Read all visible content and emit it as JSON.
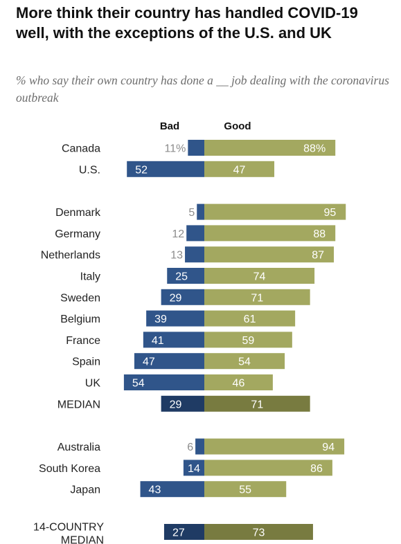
{
  "title": "More think their country has handled COVID-19 well, with the exceptions of the U.S. and UK",
  "subtitle": "% who say their own country has done a __ job dealing with the coronavirus outbreak",
  "chart_data": {
    "type": "bar",
    "orientation": "diverging-horizontal",
    "legend": [
      "Bad",
      "Good"
    ],
    "percent_suffix_on_first_row": true,
    "groups": [
      {
        "rows": [
          {
            "label": "Canada",
            "bad": 11,
            "good": 88
          },
          {
            "label": "U.S.",
            "bad": 52,
            "good": 47
          }
        ]
      },
      {
        "rows": [
          {
            "label": "Denmark",
            "bad": 5,
            "good": 95
          },
          {
            "label": "Germany",
            "bad": 12,
            "good": 88
          },
          {
            "label": "Netherlands",
            "bad": 13,
            "good": 87
          },
          {
            "label": "Italy",
            "bad": 25,
            "good": 74
          },
          {
            "label": "Sweden",
            "bad": 29,
            "good": 71
          },
          {
            "label": "Belgium",
            "bad": 39,
            "good": 61
          },
          {
            "label": "France",
            "bad": 41,
            "good": 59
          },
          {
            "label": "Spain",
            "bad": 47,
            "good": 54
          },
          {
            "label": "UK",
            "bad": 54,
            "good": 46
          },
          {
            "label": "MEDIAN",
            "bad": 29,
            "good": 71,
            "median": true
          }
        ]
      },
      {
        "rows": [
          {
            "label": "Australia",
            "bad": 6,
            "good": 94
          },
          {
            "label": "South Korea",
            "bad": 14,
            "good": 86
          },
          {
            "label": "Japan",
            "bad": 43,
            "good": 55
          }
        ]
      },
      {
        "rows": [
          {
            "label": "14-COUNTRY MEDIAN",
            "label_lines": [
              "14-COUNTRY",
              "MEDIAN"
            ],
            "bad": 27,
            "good": 73,
            "median": true
          }
        ]
      }
    ],
    "colors": {
      "bad": "#30558a",
      "good": "#a3a860",
      "bad_median": "#1f3b64",
      "good_median": "#787b40",
      "outside_label": "#8c8c8c",
      "inside_label": "#ffffff",
      "category_label": "#222222"
    }
  }
}
